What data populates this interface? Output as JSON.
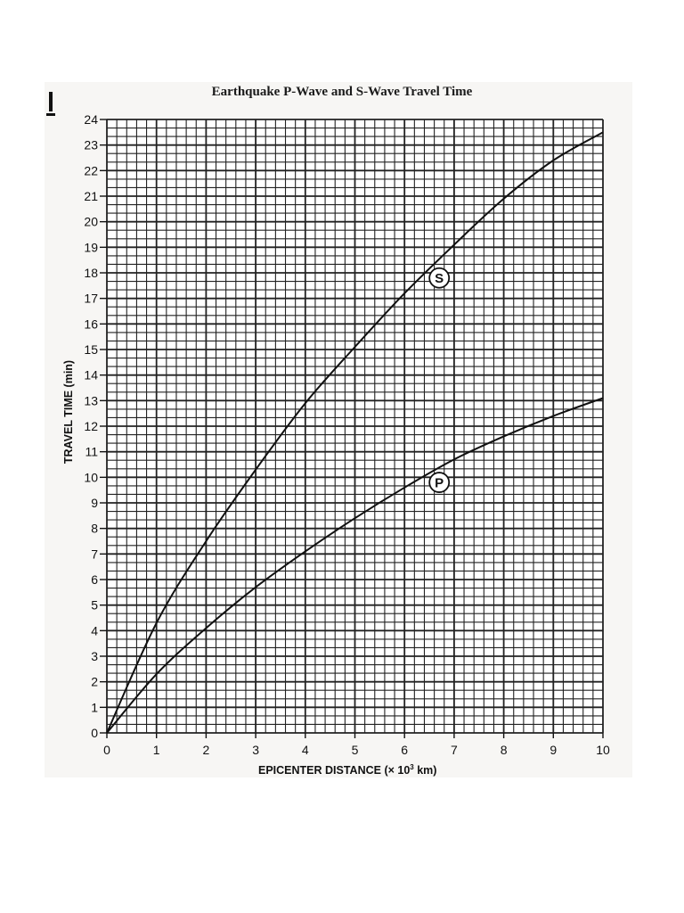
{
  "chart_data": {
    "type": "line",
    "title": "Earthquake P-Wave and S-Wave Travel Time",
    "xlabel": "EPICENTER DISTANCE (× 10³ km)",
    "ylabel": "TRAVEL TIME (min)",
    "xlim": [
      0,
      10
    ],
    "ylim": [
      0,
      24
    ],
    "x_ticks": [
      0,
      1,
      2,
      3,
      4,
      5,
      6,
      7,
      8,
      9,
      10
    ],
    "y_ticks": [
      0,
      1,
      2,
      3,
      4,
      5,
      6,
      7,
      8,
      9,
      10,
      11,
      12,
      13,
      14,
      15,
      16,
      17,
      18,
      19,
      20,
      21,
      22,
      23,
      24
    ],
    "grid": true,
    "grid_minor": {
      "x_per_unit": 5,
      "y_per_unit": 3
    },
    "legend": "inline circled labels",
    "x": [
      0,
      1,
      2,
      3,
      4,
      5,
      6,
      7,
      8,
      9,
      10
    ],
    "series": [
      {
        "name": "S",
        "values": [
          0,
          4.3,
          7.5,
          10.3,
          12.9,
          15.1,
          17.2,
          19.1,
          20.9,
          22.4,
          23.5
        ]
      },
      {
        "name": "P",
        "values": [
          0,
          2.3,
          4.1,
          5.7,
          7.1,
          8.4,
          9.6,
          10.7,
          11.6,
          12.4,
          13.1
        ]
      }
    ],
    "annotations": [
      {
        "text": "S",
        "x": 6.7,
        "y": 17.8
      },
      {
        "text": "P",
        "x": 6.7,
        "y": 9.8
      }
    ]
  },
  "labels": {
    "title": "Earthquake P-Wave and S-Wave Travel Time",
    "xlabel_main": "EPICENTER DISTANCE (× 10",
    "xlabel_sup": "3",
    "xlabel_tail": " km)",
    "ylabel": "TRAVEL TIME (min)",
    "s_label": "S",
    "p_label": "P"
  }
}
